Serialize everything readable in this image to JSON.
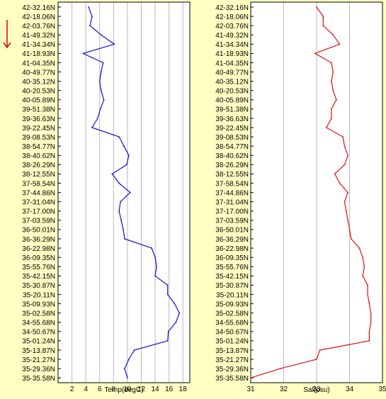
{
  "chart_data": [
    {
      "type": "line",
      "xlabel": "Temp(degC)",
      "xlim": [
        0,
        19
      ],
      "xticks": [
        2,
        4,
        6,
        8,
        10,
        12,
        14,
        16,
        18
      ],
      "latitude_labels": [
        "42-32.16N",
        "42-18.06N",
        "42-03.76N",
        "41-49.32N",
        "41-34.34N",
        "41-18.93N",
        "41-04.35N",
        "40-49.77N",
        "40-35.12N",
        "40-20.53N",
        "40-05.89N",
        "39-51.38N",
        "39-36.63N",
        "39-22.45N",
        "39-08.53N",
        "38-54.77N",
        "38-40.62N",
        "38-26.29N",
        "38-12.55N",
        "37-58.54N",
        "37-44.86N",
        "37-31.04N",
        "37-17.00N",
        "37-03.59N",
        "36-50.01N",
        "36-36.29N",
        "36-22.98N",
        "36-09.35N",
        "35-55.76N",
        "35-42.15N",
        "35-30.87N",
        "35-20.11N",
        "35-09.93N",
        "35-02.58N",
        "34-55.68N",
        "34-50.67N",
        "35-01.24N",
        "35-13.87N",
        "35-21.27N",
        "35-29.36N",
        "35-35.58N"
      ],
      "series": [
        {
          "color": "#1010e0",
          "values": [
            4.4,
            4.9,
            4.6,
            6.2,
            8.1,
            3.6,
            6.5,
            6.2,
            6.0,
            6.2,
            6.6,
            6.1,
            5.7,
            4.9,
            8.8,
            9.5,
            10.2,
            9.9,
            7.8,
            8.8,
            10.4,
            9.0,
            8.8,
            9.1,
            9.4,
            9.6,
            13.5,
            14.0,
            14.2,
            14.0,
            15.8,
            15.8,
            16.8,
            17.5,
            17.0,
            15.9,
            15.8,
            11.0,
            10.2,
            9.6,
            10.0
          ]
        }
      ]
    },
    {
      "type": "line",
      "xlabel": "Sal(psu)",
      "xlim": [
        31,
        35
      ],
      "xticks": [
        31,
        32,
        33,
        34,
        35
      ],
      "latitude_labels": [
        "42-32.16N",
        "42-18.06N",
        "42-03.76N",
        "41-49.32N",
        "41-34.34N",
        "41-18.93N",
        "41-04.35N",
        "40-49.77N",
        "40-35.12N",
        "40-20.53N",
        "40-05.89N",
        "39-51.38N",
        "39-36.63N",
        "39-22.45N",
        "39-08.53N",
        "38-54.77N",
        "38-40.62N",
        "38-26.29N",
        "38-12.55N",
        "37-58.54N",
        "37-44.86N",
        "37-31.04N",
        "37-17.00N",
        "37-03.59N",
        "36-50.01N",
        "36-36.29N",
        "36-22.98N",
        "36-09.35N",
        "35-55.76N",
        "35-42.15N",
        "35-30.87N",
        "35-20.11N",
        "35-09.93N",
        "35-02.58N",
        "34-55.68N",
        "34-50.67N",
        "35-01.24N",
        "35-13.87N",
        "35-21.27N",
        "35-29.36N",
        "35-35.58N"
      ],
      "series": [
        {
          "color": "#e01010",
          "values": [
            33.0,
            33.2,
            33.2,
            33.5,
            33.7,
            32.95,
            33.45,
            33.5,
            33.45,
            33.5,
            33.6,
            33.45,
            33.45,
            33.3,
            33.8,
            33.85,
            33.95,
            33.85,
            33.55,
            33.7,
            33.95,
            33.85,
            33.9,
            33.95,
            34.0,
            34.05,
            34.3,
            34.4,
            34.45,
            34.4,
            34.55,
            34.55,
            34.6,
            34.65,
            34.65,
            34.6,
            34.6,
            33.1,
            33.0,
            31.9,
            31.0
          ]
        }
      ]
    }
  ],
  "indicator": {
    "color": "#e01010",
    "icon": "down-arrow-icon"
  }
}
